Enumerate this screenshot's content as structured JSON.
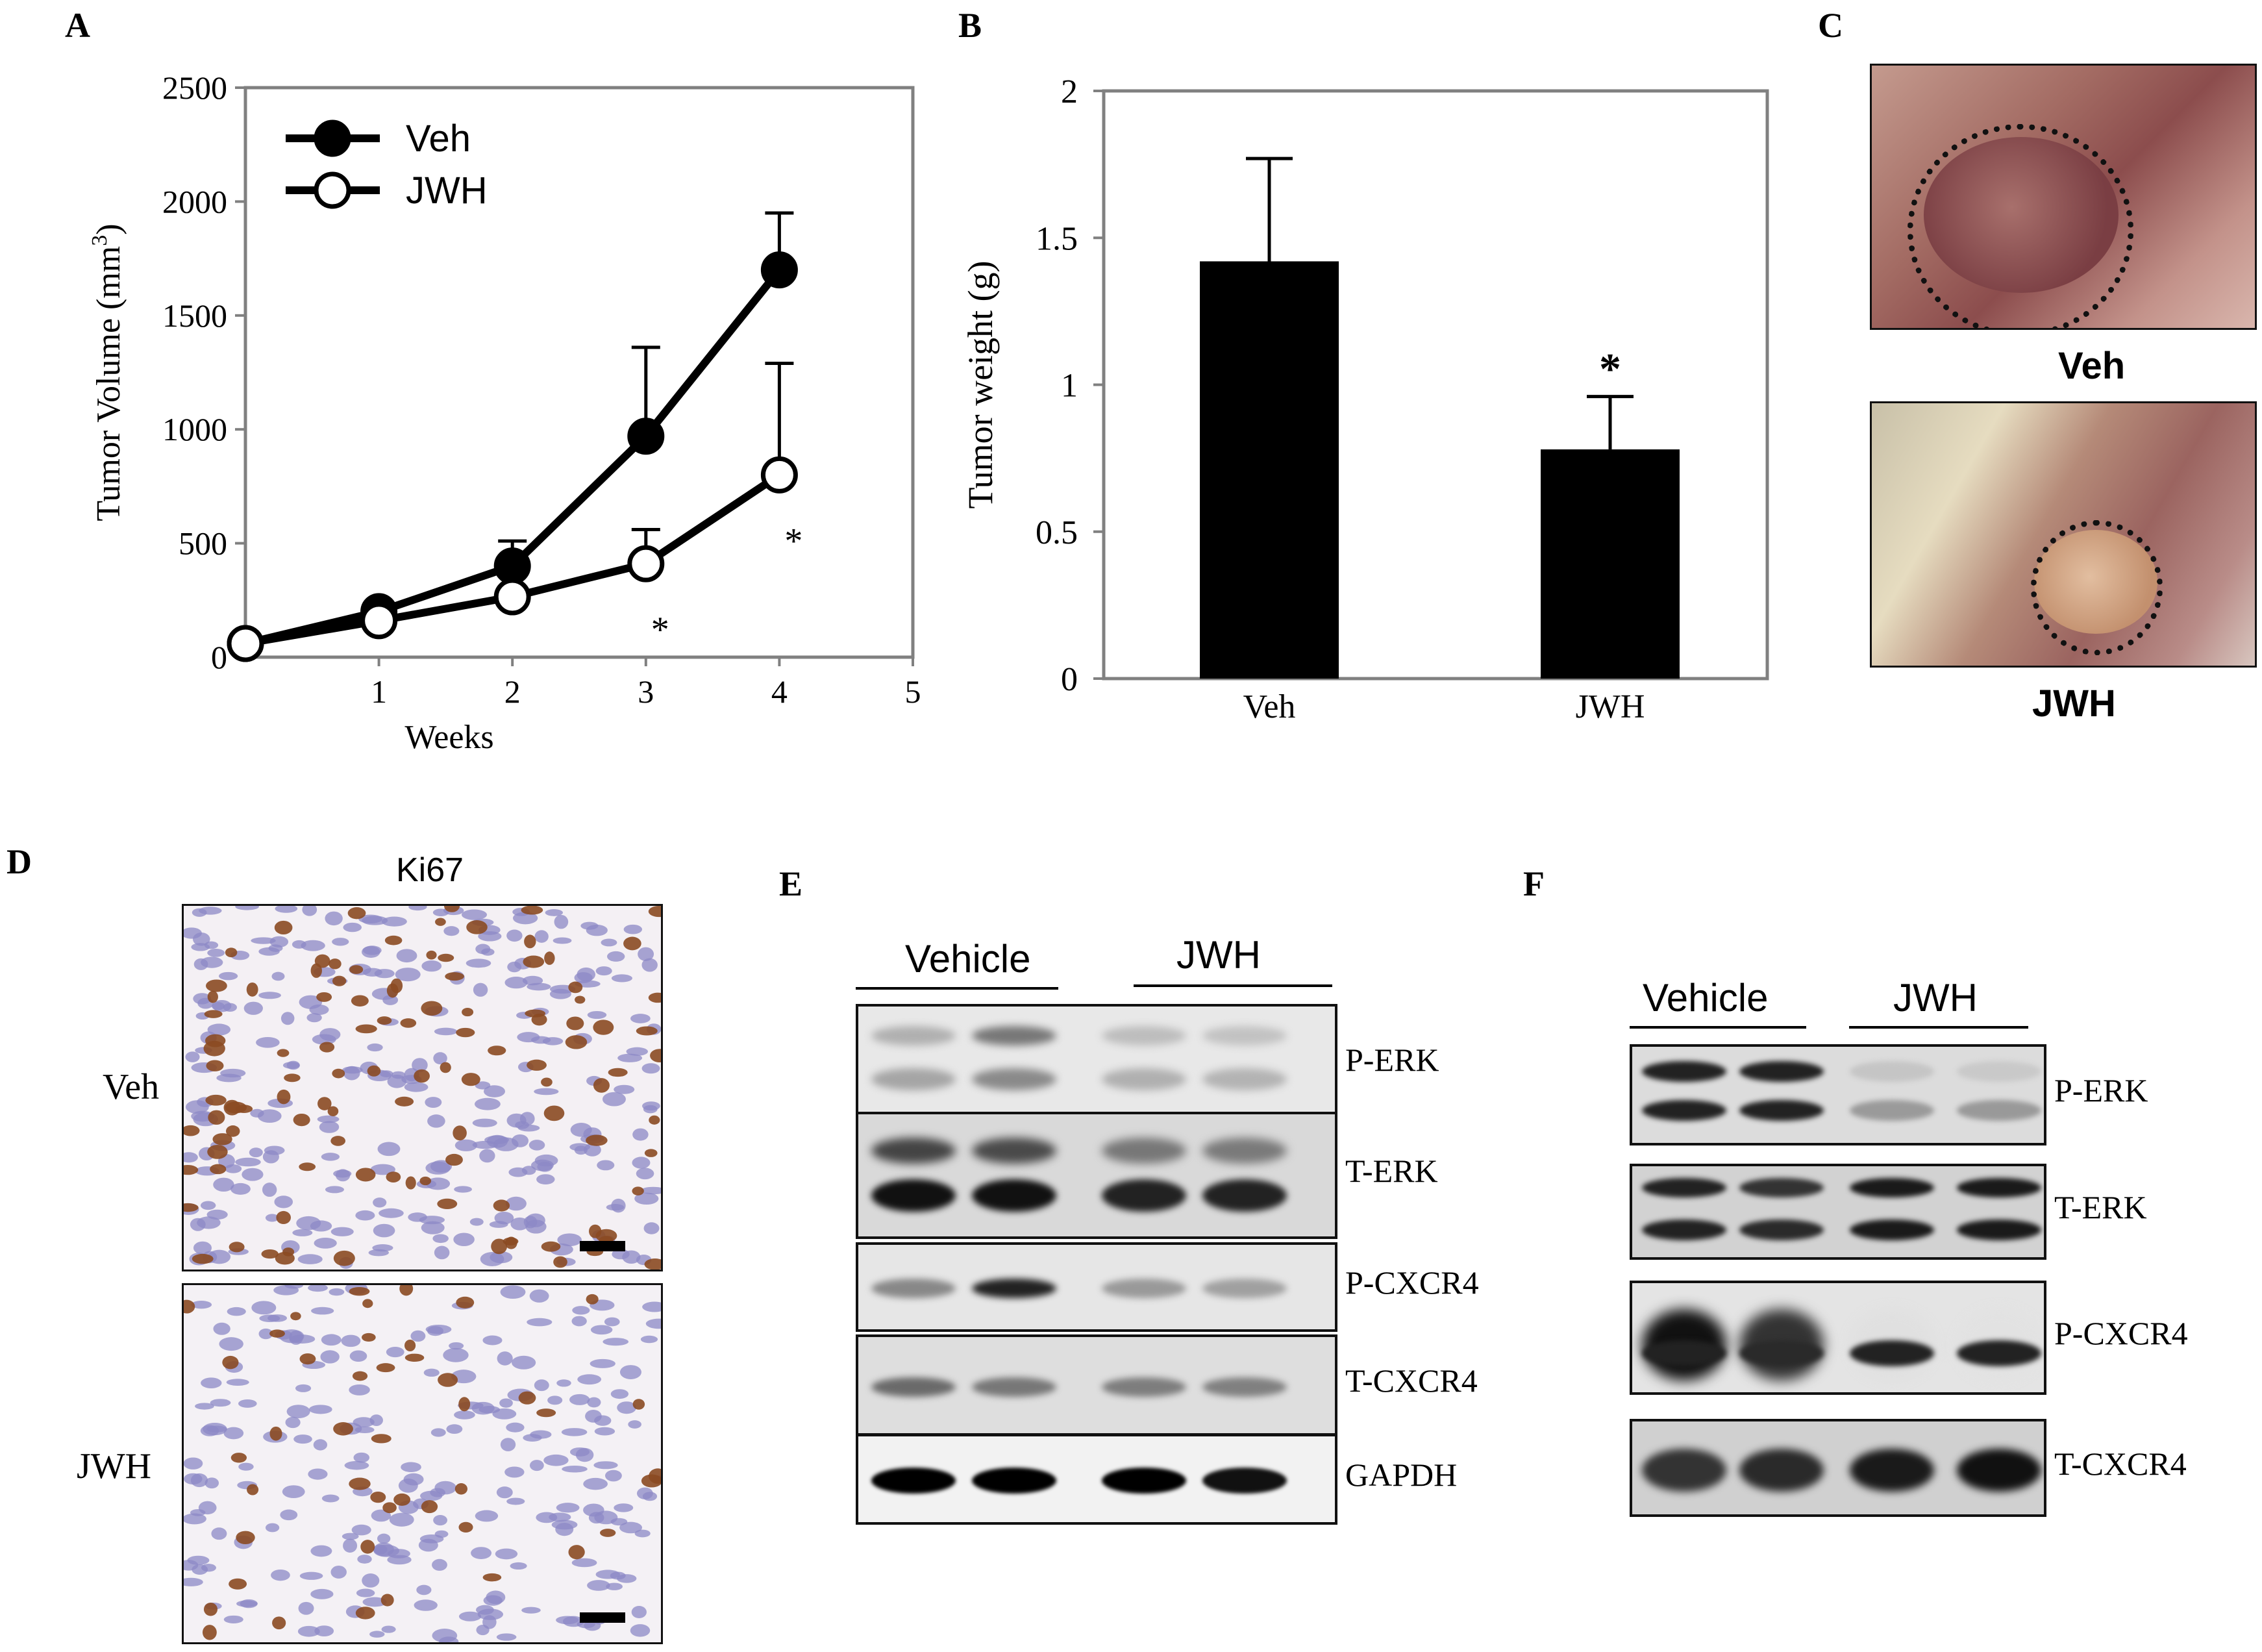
{
  "panels": {
    "A": "A",
    "B": "B",
    "C": "C",
    "D": "D",
    "E": "E",
    "F": "F"
  },
  "colors": {
    "veh_marker": "#000000",
    "jwh_marker": "#ffffff",
    "bar_fill": "#000000",
    "frame": "#808080"
  },
  "chart_data": [
    {
      "type": "line",
      "ylabel": "Tumor Volume (mm",
      "ylabel_sup": "3",
      "ylabel_end": ")",
      "xlabel": "Weeks",
      "xlim": [
        0,
        5
      ],
      "ylim": [
        0,
        2500
      ],
      "xticks": [
        "1",
        "2",
        "3",
        "4",
        "5"
      ],
      "yticks": [
        "0",
        "500",
        "1000",
        "1500",
        "2000",
        "2500"
      ],
      "legend_position": "top-left",
      "x": [
        0,
        1,
        2,
        3,
        4
      ],
      "series": [
        {
          "name": "Veh",
          "values": [
            60,
            200,
            400,
            970,
            1700
          ],
          "errors": [
            0,
            0,
            110,
            390,
            250
          ],
          "marker": "filled-circle"
        },
        {
          "name": "JWH",
          "values": [
            60,
            160,
            265,
            410,
            800
          ],
          "errors": [
            0,
            0,
            0,
            150,
            490
          ],
          "marker": "open-circle"
        }
      ],
      "annotations": [
        {
          "x": 3,
          "text": "*"
        },
        {
          "x": 4,
          "text": "*"
        }
      ]
    },
    {
      "type": "bar",
      "ylabel": "Tumor weight (g)",
      "categories": [
        "Veh",
        "JWH"
      ],
      "values": [
        1.42,
        0.78
      ],
      "errors": [
        0.35,
        0.18
      ],
      "ylim": [
        0,
        2
      ],
      "yticks": [
        "0",
        "0.5",
        "1",
        "1.5",
        "2"
      ],
      "annotations": [
        {
          "category": "JWH",
          "text": "*"
        }
      ]
    }
  ],
  "photos": {
    "C_top": "Veh",
    "C_bottom": "JWH"
  },
  "ki67": {
    "title": "Ki67",
    "top_label": "Veh",
    "bottom_label": "JWH"
  },
  "blotE": {
    "group1": "Vehicle",
    "group2": "JWH",
    "rows": [
      "P-ERK",
      "T-ERK",
      "P-CXCR4",
      "T-CXCR4",
      "GAPDH"
    ]
  },
  "blotF": {
    "group1": "Vehicle",
    "group2": "JWH",
    "rows": [
      "P-ERK",
      "T-ERK",
      "P-CXCR4",
      "T-CXCR4"
    ]
  }
}
